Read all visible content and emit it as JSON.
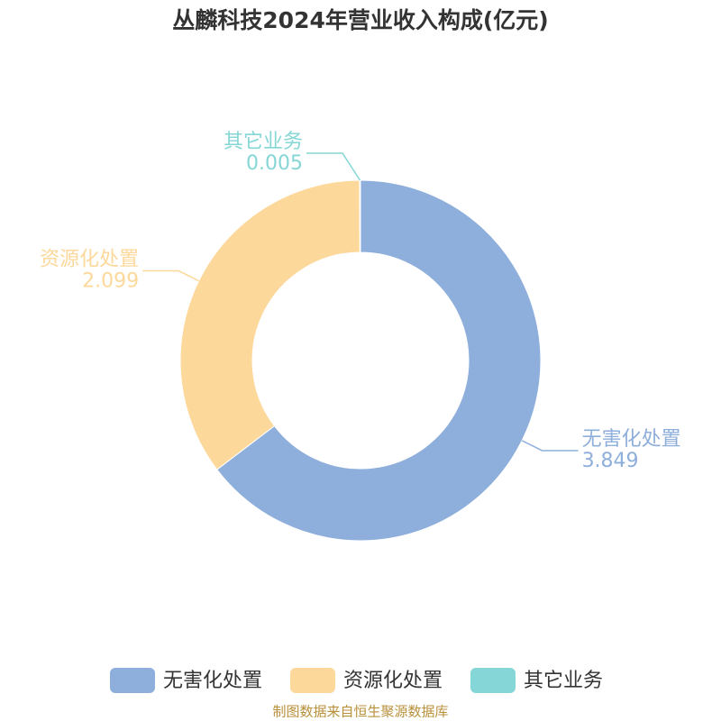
{
  "chart_data": {
    "type": "donut",
    "title": "丛麟科技2024年营业收入构成(亿元)",
    "categories": [
      "无害化处置",
      "资源化处置",
      "其它业务"
    ],
    "values": [
      3.849,
      2.099,
      0.005
    ],
    "colors": [
      "#8eaedb",
      "#fdd89b",
      "#85d6d6"
    ],
    "legend": "bottom",
    "source": "制图数据来自恒生聚源数据库"
  }
}
